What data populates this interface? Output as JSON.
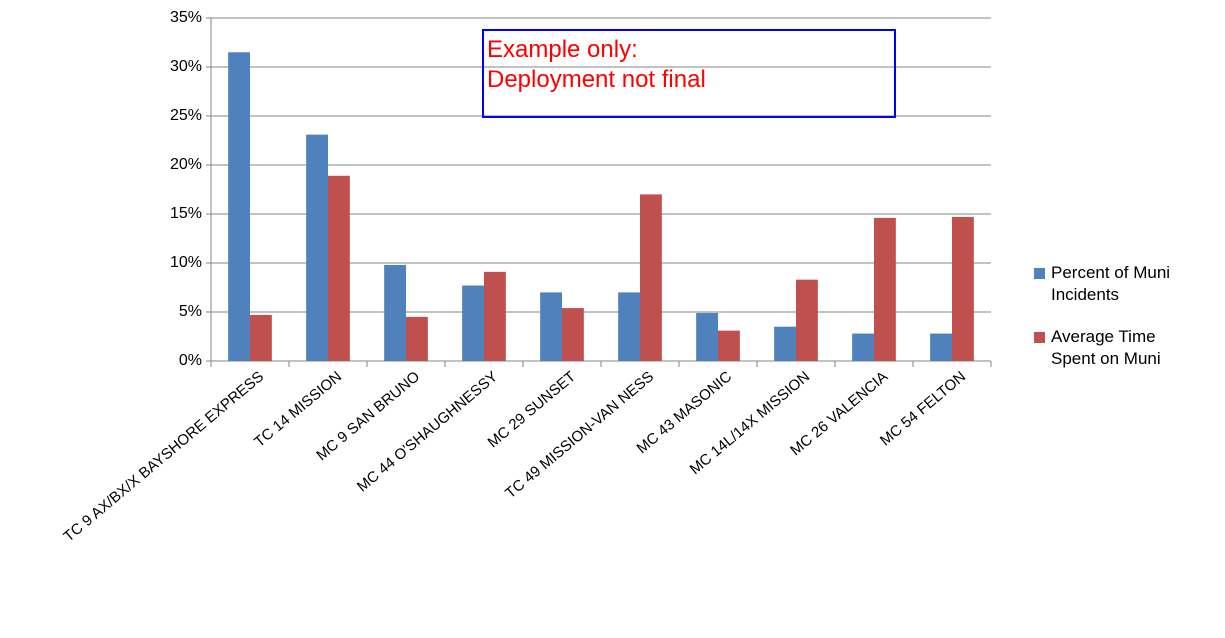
{
  "chart_data": {
    "type": "bar",
    "categories": [
      "TC 9 AX/BX/X BAYSHORE EXPRESS",
      "TC 14 MISSION",
      "MC 9 SAN BRUNO",
      "MC 44 O'SHAUGHNESSY",
      "MC 29 SUNSET",
      "TC 49 MISSION-VAN NESS",
      "MC 43 MASONIC",
      "MC 14L/14X MISSION",
      "MC 26 VALENCIA",
      "MC 54 FELTON"
    ],
    "series": [
      {
        "name": "Percent of Muni Incidents",
        "color": "#4f81bd",
        "values": [
          31.5,
          23.1,
          9.8,
          7.7,
          7.0,
          7.0,
          4.9,
          3.5,
          2.8,
          2.8
        ]
      },
      {
        "name": "Average Time Spent on Muni",
        "color": "#c0504d",
        "values": [
          4.7,
          18.9,
          4.5,
          9.1,
          5.4,
          17.0,
          3.1,
          8.3,
          14.6,
          14.7
        ]
      }
    ],
    "ylim": [
      0,
      35
    ],
    "yticks": [
      {
        "value": 0,
        "label": "0%"
      },
      {
        "value": 5,
        "label": "5%"
      },
      {
        "value": 10,
        "label": "10%"
      },
      {
        "value": 15,
        "label": "15%"
      },
      {
        "value": 20,
        "label": "20%"
      },
      {
        "value": 25,
        "label": "25%"
      },
      {
        "value": 30,
        "label": "30%"
      },
      {
        "value": 35,
        "label": "35%"
      }
    ],
    "grid": true,
    "legend": "right",
    "annotation": {
      "lines": [
        "Example only:",
        "Deployment not final"
      ]
    }
  }
}
